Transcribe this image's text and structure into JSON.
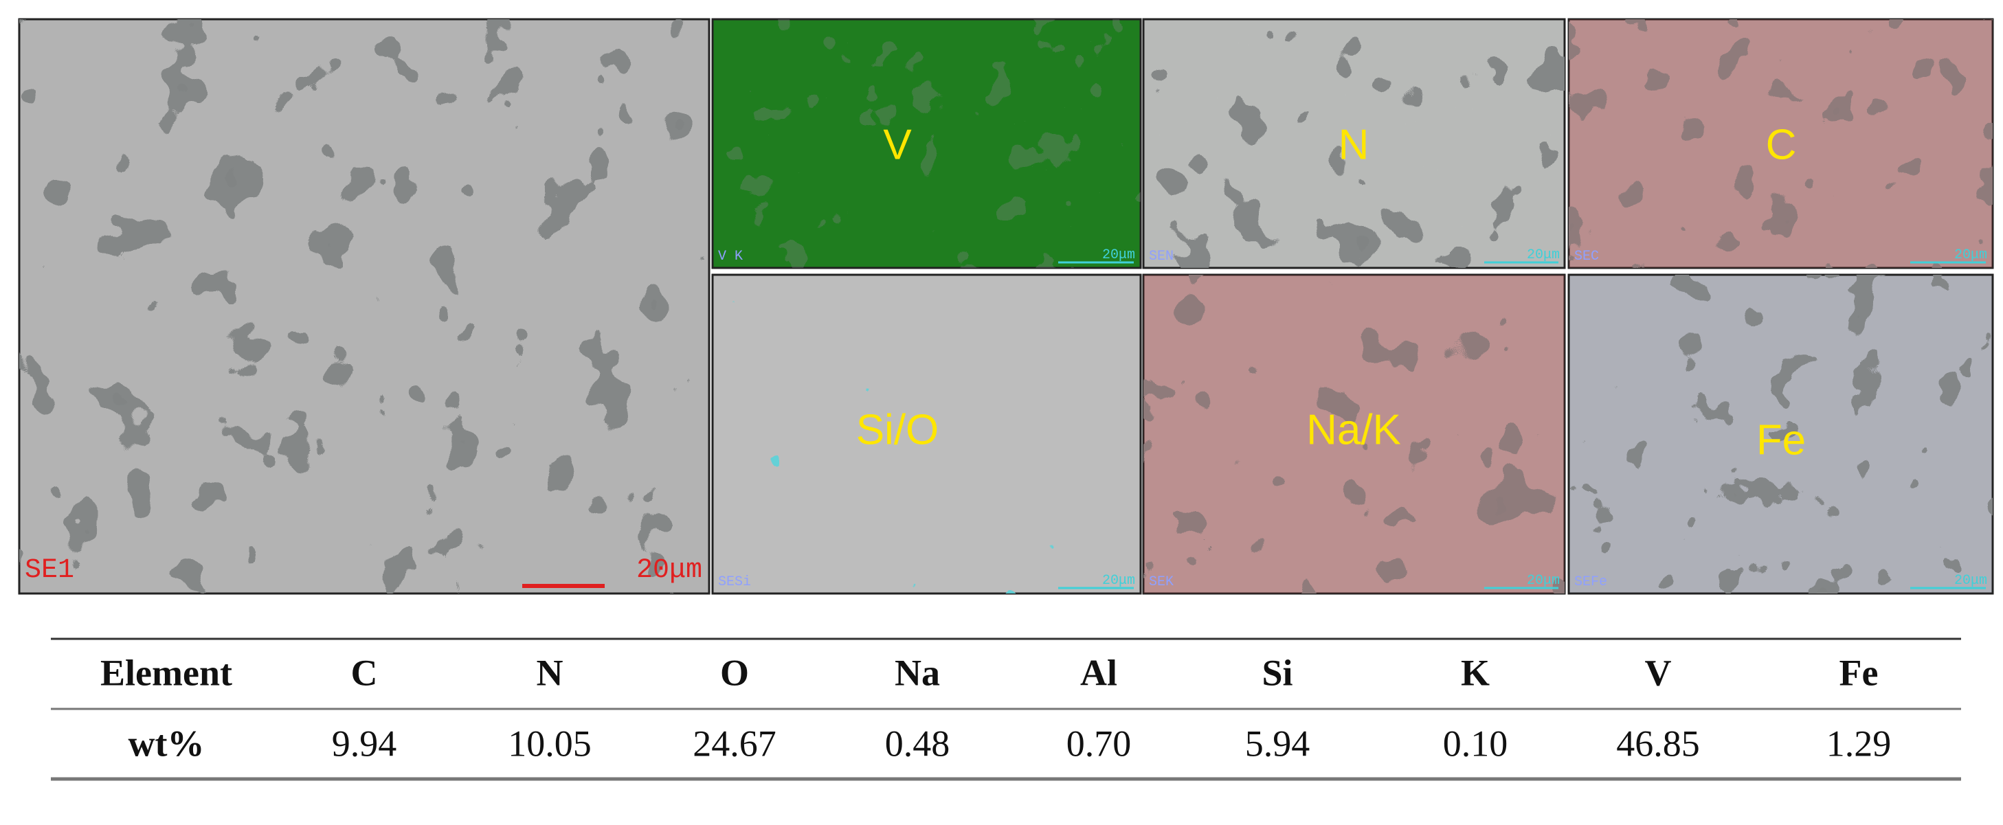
{
  "figure": {
    "main": {
      "tag": "SE1",
      "scale": "20μm"
    },
    "maps": [
      {
        "label": "V",
        "tag": "V K",
        "scale": "20μm"
      },
      {
        "label": "N",
        "tag": "SEN",
        "scale": "20μm"
      },
      {
        "label": "C",
        "tag": "SEC",
        "scale": "20μm"
      },
      {
        "label": "Si/O",
        "tag": "SESi",
        "scale": "20μm"
      },
      {
        "label": "Na/K",
        "tag": "SEK",
        "scale": "20μm"
      },
      {
        "label": "Fe",
        "tag": "SEFe",
        "scale": "20μm"
      }
    ]
  },
  "table": {
    "header": [
      "Element",
      "C",
      "N",
      "O",
      "Na",
      "Al",
      "Si",
      "K",
      "V",
      "Fe"
    ],
    "rows": [
      [
        "wt%",
        "9.94",
        "10.05",
        "24.67",
        "0.48",
        "0.70",
        "5.94",
        "0.10",
        "46.85",
        "1.29"
      ]
    ]
  }
}
